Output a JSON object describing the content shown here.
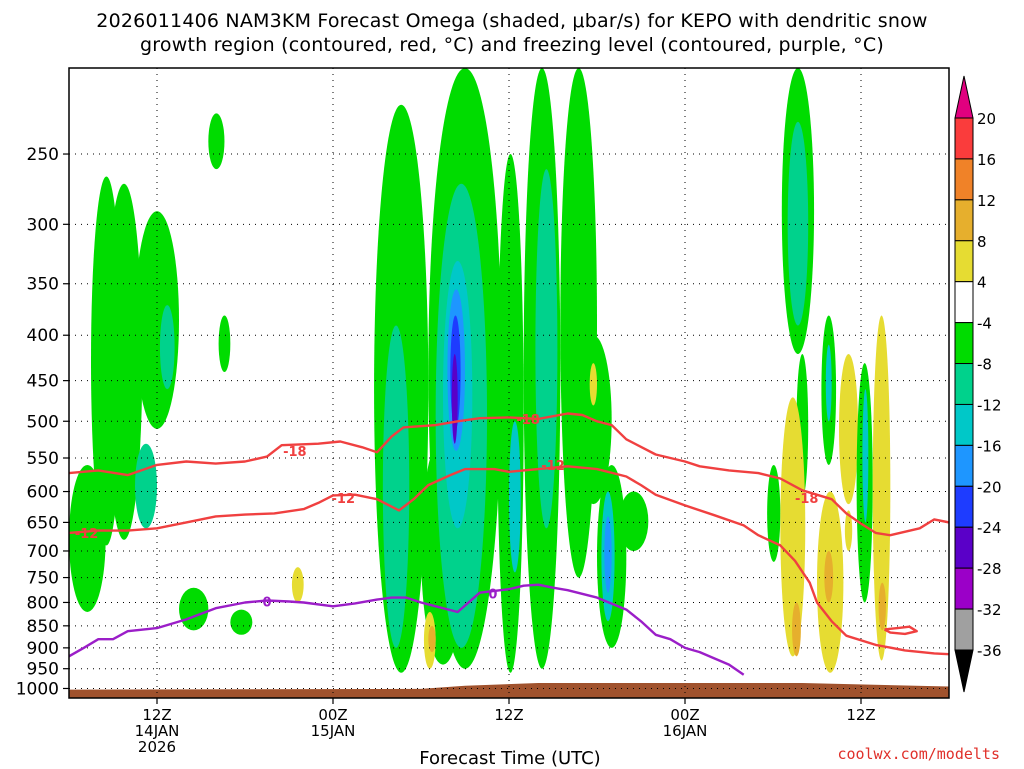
{
  "title": {
    "line1": "2026011406 NAM3KM Forecast Omega (shaded, μbar/s) for KEPO with dendritic snow",
    "line2": "growth region (contoured, red, °C) and freezing level (contoured, purple, °C)"
  },
  "credit": "coolwx.com/modelts",
  "chart_data": {
    "type": "heatmap",
    "title": "2026011406 NAM3KM Forecast Omega (shaded, μbar/s) for KEPO with dendritic snow growth region (contoured, red, °C) and freezing level (contoured, purple, °C)",
    "xlabel": "Forecast Time (UTC)",
    "ylabel": "",
    "x_range_hours": [
      6,
      66
    ],
    "x_ticks": [
      {
        "hour": 12,
        "label": "12Z",
        "sub1": "14JAN",
        "sub2": "2026"
      },
      {
        "hour": 24,
        "label": "00Z",
        "sub1": "15JAN",
        "sub2": ""
      },
      {
        "hour": 36,
        "label": "12Z",
        "sub1": "",
        "sub2": ""
      },
      {
        "hour": 48,
        "label": "00Z",
        "sub1": "16JAN",
        "sub2": ""
      },
      {
        "hour": 60,
        "label": "12Z",
        "sub1": "",
        "sub2": ""
      }
    ],
    "y_axis": {
      "scale": "log-pressure",
      "units": "hPa",
      "top": 200,
      "bottom": 1025
    },
    "y_ticks": [
      250,
      300,
      350,
      400,
      450,
      500,
      550,
      600,
      650,
      700,
      750,
      800,
      850,
      900,
      950,
      1000
    ],
    "grid": "dotted",
    "colorbar": {
      "levels": [
        -36,
        -32,
        -28,
        -24,
        -20,
        -16,
        -12,
        -8,
        -4,
        4,
        8,
        12,
        16,
        20
      ],
      "colors": [
        "#000000",
        "#a0a0a0",
        "#9b00c8",
        "#5a00c8",
        "#1e3cff",
        "#1e96ff",
        "#00c8c8",
        "#00d28c",
        "#00dc00",
        "#ffffff",
        "#e6dc32",
        "#e6af2d",
        "#f08228",
        "#fa3c3c",
        "#e1007f"
      ]
    },
    "fill_colors": {
      "green": "#00dc00",
      "green_cyan": "#00d28c",
      "cyan": "#00c8c8",
      "light_blue": "#1e96ff",
      "blue": "#1e3cff",
      "purple": "#5a00c8",
      "yellow": "#e6dc32",
      "orange": "#e6af2d"
    },
    "contours": {
      "dgz_color": "#f04040",
      "freezing_color": "#9b1ec8",
      "labels": [
        {
          "text": "-18",
          "hour": 21.4,
          "p": 540,
          "color": "red"
        },
        {
          "text": "-18",
          "hour": 37.3,
          "p": 497,
          "color": "red"
        },
        {
          "text": "-18",
          "hour": 56.3,
          "p": 610,
          "color": "red"
        },
        {
          "text": "-12",
          "hour": 7.2,
          "p": 668,
          "color": "red"
        },
        {
          "text": "-12",
          "hour": 24.7,
          "p": 610,
          "color": "red"
        },
        {
          "text": "-12",
          "hour": 39.0,
          "p": 560,
          "color": "red"
        },
        {
          "text": "0",
          "hour": 19.5,
          "p": 798,
          "color": "purple"
        },
        {
          "text": "0",
          "hour": 34.9,
          "p": 782,
          "color": "purple"
        }
      ],
      "dgz_minus18": [
        [
          6,
          572
        ],
        [
          8,
          568
        ],
        [
          10,
          575
        ],
        [
          12,
          560
        ],
        [
          14,
          555
        ],
        [
          16,
          558
        ],
        [
          18,
          555
        ],
        [
          19.5,
          548
        ],
        [
          20.5,
          532
        ],
        [
          23,
          530
        ],
        [
          24.5,
          527
        ],
        [
          26,
          535
        ],
        [
          27,
          542
        ],
        [
          28,
          520
        ],
        [
          28.8,
          508
        ],
        [
          31,
          505
        ],
        [
          32.5,
          500
        ],
        [
          34,
          496
        ],
        [
          36,
          495
        ],
        [
          38,
          497
        ],
        [
          40,
          490
        ],
        [
          41,
          492
        ],
        [
          42,
          500
        ],
        [
          43,
          505
        ],
        [
          44,
          524
        ],
        [
          46,
          545
        ],
        [
          48,
          555
        ],
        [
          49,
          562
        ],
        [
          51,
          568
        ],
        [
          53,
          572
        ],
        [
          54.5,
          580
        ],
        [
          56,
          598
        ],
        [
          58,
          612
        ],
        [
          59,
          635
        ],
        [
          60,
          652
        ],
        [
          61,
          668
        ],
        [
          62,
          672
        ],
        [
          64,
          660
        ],
        [
          65,
          645
        ],
        [
          66,
          650
        ]
      ],
      "dgz_minus12": [
        [
          6,
          668
        ],
        [
          8,
          664
        ],
        [
          10,
          664
        ],
        [
          12,
          660
        ],
        [
          14,
          650
        ],
        [
          16,
          640
        ],
        [
          18,
          637
        ],
        [
          20,
          635
        ],
        [
          22,
          628
        ],
        [
          23,
          618
        ],
        [
          24,
          606
        ],
        [
          25.5,
          605
        ],
        [
          27,
          612
        ],
        [
          28.5,
          630
        ],
        [
          29.5,
          612
        ],
        [
          30.5,
          590
        ],
        [
          32,
          575
        ],
        [
          33,
          566
        ],
        [
          35,
          566
        ],
        [
          36,
          570
        ],
        [
          38,
          566
        ],
        [
          40,
          562
        ],
        [
          42,
          566
        ],
        [
          44,
          577
        ],
        [
          45,
          590
        ],
        [
          46,
          605
        ],
        [
          48,
          622
        ],
        [
          50,
          638
        ],
        [
          52,
          655
        ],
        [
          53,
          672
        ],
        [
          54.5,
          690
        ],
        [
          55.5,
          718
        ],
        [
          56.5,
          760
        ],
        [
          57,
          800
        ],
        [
          58,
          840
        ],
        [
          59,
          872
        ],
        [
          61,
          893
        ],
        [
          63,
          906
        ],
        [
          65,
          913
        ],
        [
          66,
          915
        ]
      ],
      "freezing_0": [
        [
          6,
          920
        ],
        [
          7,
          900
        ],
        [
          8,
          880
        ],
        [
          9,
          880
        ],
        [
          10,
          862
        ],
        [
          12,
          855
        ],
        [
          14,
          836
        ],
        [
          16,
          812
        ],
        [
          18,
          800
        ],
        [
          19.5,
          796
        ],
        [
          21,
          798
        ],
        [
          22,
          800
        ],
        [
          24,
          808
        ],
        [
          25.5,
          802
        ],
        [
          27,
          794
        ],
        [
          28,
          790
        ],
        [
          29,
          790
        ],
        [
          30,
          800
        ],
        [
          31,
          808
        ],
        [
          32.5,
          820
        ],
        [
          34,
          780
        ],
        [
          36,
          773
        ],
        [
          37,
          766
        ],
        [
          38,
          764
        ],
        [
          39,
          770
        ],
        [
          40,
          775
        ],
        [
          42,
          790
        ],
        [
          44,
          815
        ],
        [
          45,
          840
        ],
        [
          46,
          870
        ],
        [
          47,
          880
        ],
        [
          48,
          900
        ],
        [
          49,
          910
        ],
        [
          50,
          925
        ],
        [
          51,
          940
        ],
        [
          52,
          965
        ]
      ],
      "small_red_loop": [
        [
          61.6,
          858
        ],
        [
          62.5,
          855
        ],
        [
          63.3,
          852
        ],
        [
          63.8,
          862
        ],
        [
          63,
          868
        ],
        [
          62,
          865
        ],
        [
          61.6,
          858
        ]
      ]
    },
    "shaded_regions": [
      {
        "color": "green",
        "hour": [
          6,
          8.5
        ],
        "p": [
          560,
          820
        ]
      },
      {
        "color": "green",
        "hour": [
          7.5,
          9.6
        ],
        "p": [
          265,
          690
        ]
      },
      {
        "color": "green",
        "hour": [
          8.5,
          11
        ],
        "p": [
          270,
          680
        ]
      },
      {
        "color": "green_cyan",
        "hour": [
          10.5,
          12
        ],
        "p": [
          530,
          660
        ]
      },
      {
        "color": "green",
        "hour": [
          10.5,
          13.5
        ],
        "p": [
          290,
          510
        ]
      },
      {
        "color": "green_cyan",
        "hour": [
          12.2,
          13.2
        ],
        "p": [
          370,
          460
        ]
      },
      {
        "color": "green",
        "hour": [
          15.5,
          16.6
        ],
        "p": [
          225,
          260
        ]
      },
      {
        "color": "green",
        "hour": [
          16.2,
          17
        ],
        "p": [
          380,
          440
        ]
      },
      {
        "color": "green",
        "hour": [
          13.5,
          15.5
        ],
        "p": [
          770,
          860
        ]
      },
      {
        "color": "green",
        "hour": [
          17,
          18.5
        ],
        "p": [
          815,
          870
        ]
      },
      {
        "color": "yellow",
        "hour": [
          21.2,
          22
        ],
        "p": [
          730,
          800
        ]
      },
      {
        "color": "green",
        "hour": [
          26.8,
          30.5
        ],
        "p": [
          220,
          960
        ]
      },
      {
        "color": "green_cyan",
        "hour": [
          27.4,
          29.2
        ],
        "p": [
          390,
          900
        ]
      },
      {
        "color": "green",
        "hour": [
          30,
          33
        ],
        "p": [
          520,
          940
        ]
      },
      {
        "color": "green",
        "hour": [
          30.5,
          35.5
        ],
        "p": [
          200,
          950
        ]
      },
      {
        "color": "green_cyan",
        "hour": [
          31,
          34.5
        ],
        "p": [
          270,
          900
        ]
      },
      {
        "color": "cyan",
        "hour": [
          31.5,
          33.5
        ],
        "p": [
          330,
          660
        ]
      },
      {
        "color": "light_blue",
        "hour": [
          31.8,
          33
        ],
        "p": [
          355,
          540
        ]
      },
      {
        "color": "blue",
        "hour": [
          32,
          32.7
        ],
        "p": [
          380,
          510
        ]
      },
      {
        "color": "purple",
        "hour": [
          32.1,
          32.5
        ],
        "p": [
          420,
          530
        ]
      },
      {
        "color": "yellow",
        "hour": [
          30.2,
          31
        ],
        "p": [
          820,
          950
        ]
      },
      {
        "color": "orange",
        "hour": [
          30.5,
          31
        ],
        "p": [
          850,
          910
        ]
      },
      {
        "color": "green",
        "hour": [
          35.2,
          37
        ],
        "p": [
          250,
          960
        ]
      },
      {
        "color": "cyan",
        "hour": [
          36,
          36.8
        ],
        "p": [
          500,
          740
        ]
      },
      {
        "color": "green",
        "hour": [
          37,
          39.5
        ],
        "p": [
          200,
          950
        ]
      },
      {
        "color": "green_cyan",
        "hour": [
          37.8,
          39.3
        ],
        "p": [
          260,
          660
        ]
      },
      {
        "color": "green",
        "hour": [
          39.5,
          42
        ],
        "p": [
          200,
          750
        ]
      },
      {
        "color": "green",
        "hour": [
          40.5,
          43
        ],
        "p": [
          400,
          620
        ]
      },
      {
        "color": "yellow",
        "hour": [
          41.5,
          42
        ],
        "p": [
          430,
          480
        ]
      },
      {
        "color": "green",
        "hour": [
          42,
          44
        ],
        "p": [
          560,
          900
        ]
      },
      {
        "color": "cyan",
        "hour": [
          42.3,
          43.2
        ],
        "p": [
          600,
          840
        ]
      },
      {
        "color": "light_blue",
        "hour": [
          42.5,
          43
        ],
        "p": [
          640,
          780
        ]
      },
      {
        "color": "green",
        "hour": [
          43.5,
          45.5
        ],
        "p": [
          600,
          700
        ]
      },
      {
        "color": "green",
        "hour": [
          54.6,
          56.8
        ],
        "p": [
          200,
          420
        ]
      },
      {
        "color": "green_cyan",
        "hour": [
          55,
          56.4
        ],
        "p": [
          230,
          390
        ]
      },
      {
        "color": "green",
        "hour": [
          53.6,
          54.5
        ],
        "p": [
          560,
          720
        ]
      },
      {
        "color": "green",
        "hour": [
          55.6,
          56.4
        ],
        "p": [
          420,
          610
        ]
      },
      {
        "color": "yellow",
        "hour": [
          54.5,
          56.2
        ],
        "p": [
          470,
          920
        ]
      },
      {
        "color": "orange",
        "hour": [
          55.3,
          55.9
        ],
        "p": [
          800,
          920
        ]
      },
      {
        "color": "green",
        "hour": [
          57.3,
          58.3
        ],
        "p": [
          380,
          560
        ]
      },
      {
        "color": "cyan",
        "hour": [
          57.6,
          58
        ],
        "p": [
          410,
          500
        ]
      },
      {
        "color": "yellow",
        "hour": [
          57,
          58.8
        ],
        "p": [
          600,
          960
        ]
      },
      {
        "color": "orange",
        "hour": [
          57.5,
          58.1
        ],
        "p": [
          700,
          800
        ]
      },
      {
        "color": "yellow",
        "hour": [
          58.5,
          59.8
        ],
        "p": [
          420,
          620
        ]
      },
      {
        "color": "green",
        "hour": [
          59.7,
          60.8
        ],
        "p": [
          430,
          800
        ]
      },
      {
        "color": "cyan",
        "hour": [
          60.1,
          60.5
        ],
        "p": [
          460,
          650
        ]
      },
      {
        "color": "yellow",
        "hour": [
          60.8,
          62
        ],
        "p": [
          380,
          930
        ]
      },
      {
        "color": "orange",
        "hour": [
          61.2,
          61.7
        ],
        "p": [
          760,
          860
        ]
      },
      {
        "color": "yellow",
        "hour": [
          58.9,
          59.4
        ],
        "p": [
          630,
          700
        ]
      }
    ],
    "terrain": {
      "color": "#a0522d",
      "top_p": [
        [
          6,
          1003
        ],
        [
          30,
          1001
        ],
        [
          33,
          993
        ],
        [
          38,
          986
        ],
        [
          48,
          986
        ],
        [
          56,
          986
        ],
        [
          66,
          995
        ]
      ]
    }
  }
}
